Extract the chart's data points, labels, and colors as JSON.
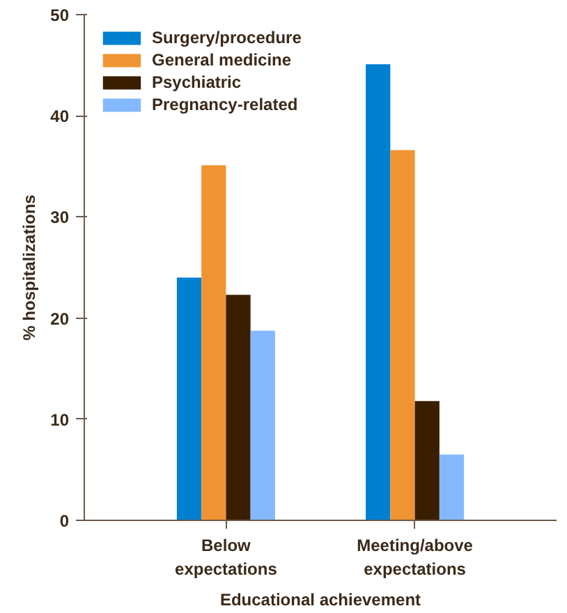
{
  "chart_data": {
    "type": "bar",
    "xlabel": "Educational achievement",
    "ylabel": "% hospitalizations",
    "categories": [
      "Below\nexpectations",
      "Meeting/above\nexpectations"
    ],
    "series": [
      {
        "name": "Surgery/procedure",
        "color": "#0080d0",
        "values": [
          24.0,
          45.1
        ]
      },
      {
        "name": "General medicine",
        "color": "#f09433",
        "values": [
          35.1,
          36.6
        ]
      },
      {
        "name": "Psychiatric",
        "color": "#3a1e00",
        "values": [
          22.3,
          11.8
        ]
      },
      {
        "name": "Pregnancy-related",
        "color": "#84b9ff",
        "values": [
          18.75,
          6.5
        ]
      }
    ],
    "ylim": [
      0,
      50
    ],
    "yticks": [
      0,
      10,
      20,
      30,
      40,
      50
    ],
    "grid": false,
    "legend": "top left"
  }
}
